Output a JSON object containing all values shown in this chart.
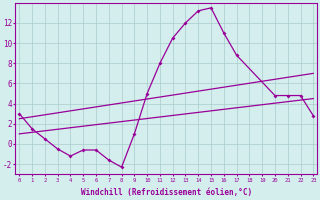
{
  "xlabel": "Windchill (Refroidissement éolien,°C)",
  "background_color": "#d4eeed",
  "grid_color": "#aacccc",
  "line_color": "#990099",
  "line1_x": [
    0,
    1,
    2,
    3,
    4,
    5,
    6,
    7,
    8,
    9,
    10,
    11,
    12,
    13,
    14,
    15,
    16,
    17,
    20,
    21,
    22,
    23
  ],
  "line1_y": [
    3.0,
    1.5,
    0.5,
    -0.5,
    -1.2,
    -0.6,
    -0.6,
    -1.6,
    -2.3,
    1.0,
    5.0,
    8.0,
    10.5,
    12.0,
    13.2,
    13.5,
    11.0,
    8.8,
    4.8,
    4.8,
    4.8,
    2.8
  ],
  "line2_x": [
    0,
    23
  ],
  "line2_y": [
    1.0,
    4.5
  ],
  "line3_x": [
    0,
    23
  ],
  "line3_y": [
    2.5,
    7.0
  ],
  "ylim": [
    -3,
    14
  ],
  "xlim": [
    -0.3,
    23.3
  ],
  "yticks": [
    -2,
    0,
    2,
    4,
    6,
    8,
    10,
    12
  ],
  "xtick_labels": [
    "0",
    "1",
    "2",
    "3",
    "4",
    "5",
    "6",
    "7",
    "8",
    "9",
    "10",
    "11",
    "12",
    "13",
    "14",
    "15",
    "16",
    "17",
    "18",
    "19",
    "20",
    "21",
    "22",
    "23"
  ]
}
